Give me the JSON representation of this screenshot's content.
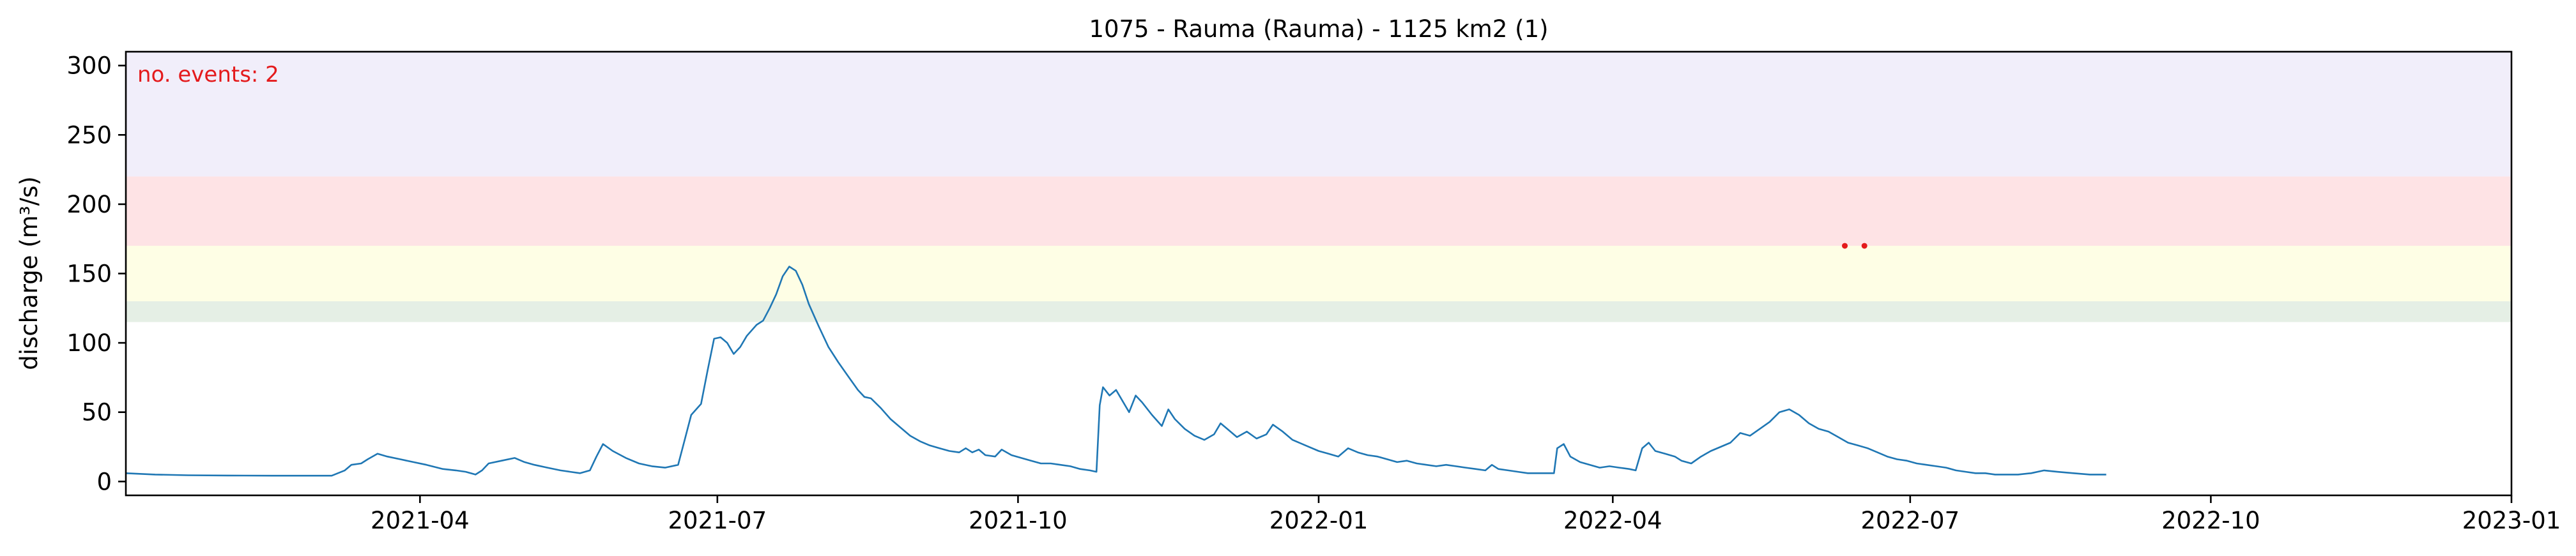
{
  "chart_data": {
    "type": "line",
    "title": "1075 - Rauma (Rauma) - 1125 km2 (1)",
    "xlabel": "",
    "ylabel": "discharge (m³/s)",
    "xlim": [
      "2021-01-01",
      "2023-01-01"
    ],
    "ylim": [
      -10,
      310
    ],
    "x_ticks": [
      "2021-04",
      "2021-07",
      "2021-10",
      "2022-01",
      "2022-04",
      "2022-07",
      "2022-10",
      "2023-01"
    ],
    "y_ticks": [
      0,
      50,
      100,
      150,
      200,
      250,
      300
    ],
    "grid": false,
    "annotation": {
      "text": "no. events: 2",
      "color": "#e41a1c",
      "placement": "top-left"
    },
    "threshold_bands": [
      {
        "from": 115,
        "to": 130,
        "color": "#e5efe5"
      },
      {
        "from": 130,
        "to": 170,
        "color": "#fefee5"
      },
      {
        "from": 170,
        "to": 220,
        "color": "#fee3e5"
      },
      {
        "from": 220,
        "to": 310,
        "color": "#f1eefa"
      }
    ],
    "series": [
      {
        "color": "#1f77b4",
        "points": [
          [
            "2021-01-01",
            6
          ],
          [
            "2021-01-10",
            5
          ],
          [
            "2021-01-20",
            4.5
          ],
          [
            "2021-02-01",
            4.3
          ],
          [
            "2021-02-15",
            4.2
          ],
          [
            "2021-03-05",
            4.2
          ],
          [
            "2021-03-09",
            8
          ],
          [
            "2021-03-11",
            12
          ],
          [
            "2021-03-14",
            13
          ],
          [
            "2021-03-16",
            16
          ],
          [
            "2021-03-19",
            20
          ],
          [
            "2021-03-22",
            18
          ],
          [
            "2021-03-26",
            16
          ],
          [
            "2021-03-30",
            14
          ],
          [
            "2021-04-03",
            12
          ],
          [
            "2021-04-08",
            9
          ],
          [
            "2021-04-12",
            8
          ],
          [
            "2021-04-15",
            7
          ],
          [
            "2021-04-18",
            5
          ],
          [
            "2021-04-20",
            8
          ],
          [
            "2021-04-22",
            13
          ],
          [
            "2021-04-26",
            15
          ],
          [
            "2021-04-30",
            17
          ],
          [
            "2021-05-03",
            14
          ],
          [
            "2021-05-06",
            12
          ],
          [
            "2021-05-10",
            10
          ],
          [
            "2021-05-14",
            8
          ],
          [
            "2021-05-17",
            7
          ],
          [
            "2021-05-20",
            6
          ],
          [
            "2021-05-23",
            8
          ],
          [
            "2021-05-25",
            18
          ],
          [
            "2021-05-27",
            27
          ],
          [
            "2021-05-30",
            22
          ],
          [
            "2021-06-03",
            17
          ],
          [
            "2021-06-07",
            13
          ],
          [
            "2021-06-11",
            11
          ],
          [
            "2021-06-15",
            10
          ],
          [
            "2021-06-19",
            12
          ],
          [
            "2021-06-21",
            30
          ],
          [
            "2021-06-23",
            48
          ],
          [
            "2021-06-26",
            56
          ],
          [
            "2021-06-28",
            80
          ],
          [
            "2021-06-30",
            103
          ],
          [
            "2021-07-02",
            104
          ],
          [
            "2021-07-04",
            100
          ],
          [
            "2021-07-06",
            92
          ],
          [
            "2021-07-08",
            97
          ],
          [
            "2021-07-10",
            105
          ],
          [
            "2021-07-13",
            113
          ],
          [
            "2021-07-15",
            116
          ],
          [
            "2021-07-17",
            125
          ],
          [
            "2021-07-19",
            135
          ],
          [
            "2021-07-21",
            148
          ],
          [
            "2021-07-23",
            155
          ],
          [
            "2021-07-25",
            152
          ],
          [
            "2021-07-27",
            142
          ],
          [
            "2021-07-29",
            128
          ],
          [
            "2021-08-01",
            112
          ],
          [
            "2021-08-04",
            97
          ],
          [
            "2021-08-07",
            86
          ],
          [
            "2021-08-10",
            76
          ],
          [
            "2021-08-13",
            66
          ],
          [
            "2021-08-15",
            61
          ],
          [
            "2021-08-17",
            60
          ],
          [
            "2021-08-20",
            53
          ],
          [
            "2021-08-23",
            45
          ],
          [
            "2021-08-26",
            39
          ],
          [
            "2021-08-29",
            33
          ],
          [
            "2021-09-01",
            29
          ],
          [
            "2021-09-04",
            26
          ],
          [
            "2021-09-07",
            24
          ],
          [
            "2021-09-10",
            22
          ],
          [
            "2021-09-13",
            21
          ],
          [
            "2021-09-15",
            24
          ],
          [
            "2021-09-17",
            21
          ],
          [
            "2021-09-19",
            23
          ],
          [
            "2021-09-21",
            19
          ],
          [
            "2021-09-24",
            18
          ],
          [
            "2021-09-26",
            23
          ],
          [
            "2021-09-29",
            19
          ],
          [
            "2021-10-02",
            17
          ],
          [
            "2021-10-05",
            15
          ],
          [
            "2021-10-08",
            13
          ],
          [
            "2021-10-11",
            13
          ],
          [
            "2021-10-14",
            12
          ],
          [
            "2021-10-17",
            11
          ],
          [
            "2021-10-20",
            9
          ],
          [
            "2021-10-23",
            8
          ],
          [
            "2021-10-25",
            7
          ],
          [
            "2021-10-26",
            55
          ],
          [
            "2021-10-27",
            68
          ],
          [
            "2021-10-29",
            62
          ],
          [
            "2021-10-31",
            66
          ],
          [
            "2021-11-02",
            58
          ],
          [
            "2021-11-04",
            50
          ],
          [
            "2021-11-06",
            62
          ],
          [
            "2021-11-08",
            57
          ],
          [
            "2021-11-11",
            48
          ],
          [
            "2021-11-14",
            40
          ],
          [
            "2021-11-16",
            52
          ],
          [
            "2021-11-18",
            45
          ],
          [
            "2021-11-21",
            38
          ],
          [
            "2021-11-24",
            33
          ],
          [
            "2021-11-27",
            30
          ],
          [
            "2021-11-30",
            34
          ],
          [
            "2021-12-02",
            42
          ],
          [
            "2021-12-04",
            38
          ],
          [
            "2021-12-07",
            32
          ],
          [
            "2021-12-10",
            36
          ],
          [
            "2021-12-13",
            31
          ],
          [
            "2021-12-16",
            34
          ],
          [
            "2021-12-18",
            41
          ],
          [
            "2021-12-21",
            36
          ],
          [
            "2021-12-24",
            30
          ],
          [
            "2021-12-28",
            26
          ],
          [
            "2022-01-01",
            22
          ],
          [
            "2022-01-04",
            20
          ],
          [
            "2022-01-07",
            18
          ],
          [
            "2022-01-10",
            24
          ],
          [
            "2022-01-13",
            21
          ],
          [
            "2022-01-16",
            19
          ],
          [
            "2022-01-19",
            18
          ],
          [
            "2022-01-22",
            16
          ],
          [
            "2022-01-25",
            14
          ],
          [
            "2022-01-28",
            15
          ],
          [
            "2022-01-31",
            13
          ],
          [
            "2022-02-03",
            12
          ],
          [
            "2022-02-06",
            11
          ],
          [
            "2022-02-09",
            12
          ],
          [
            "2022-02-12",
            11
          ],
          [
            "2022-02-15",
            10
          ],
          [
            "2022-02-18",
            9
          ],
          [
            "2022-02-21",
            8
          ],
          [
            "2022-02-23",
            12
          ],
          [
            "2022-02-25",
            9
          ],
          [
            "2022-02-28",
            8
          ],
          [
            "2022-03-03",
            7
          ],
          [
            "2022-03-06",
            6
          ],
          [
            "2022-03-09",
            6
          ],
          [
            "2022-03-12",
            6
          ],
          [
            "2022-03-14",
            6
          ],
          [
            "2022-03-15",
            24
          ],
          [
            "2022-03-17",
            27
          ],
          [
            "2022-03-19",
            18
          ],
          [
            "2022-03-22",
            14
          ],
          [
            "2022-03-25",
            12
          ],
          [
            "2022-03-28",
            10
          ],
          [
            "2022-03-31",
            11
          ],
          [
            "2022-04-03",
            10
          ],
          [
            "2022-04-06",
            9
          ],
          [
            "2022-04-08",
            8
          ],
          [
            "2022-04-10",
            24
          ],
          [
            "2022-04-12",
            28
          ],
          [
            "2022-04-14",
            22
          ],
          [
            "2022-04-17",
            20
          ],
          [
            "2022-04-20",
            18
          ],
          [
            "2022-04-22",
            15
          ],
          [
            "2022-04-25",
            13
          ],
          [
            "2022-04-28",
            18
          ],
          [
            "2022-05-01",
            22
          ],
          [
            "2022-05-04",
            25
          ],
          [
            "2022-05-07",
            28
          ],
          [
            "2022-05-10",
            35
          ],
          [
            "2022-05-13",
            33
          ],
          [
            "2022-05-16",
            38
          ],
          [
            "2022-05-19",
            43
          ],
          [
            "2022-05-22",
            50
          ],
          [
            "2022-05-25",
            52
          ],
          [
            "2022-05-28",
            48
          ],
          [
            "2022-05-31",
            42
          ],
          [
            "2022-06-03",
            38
          ],
          [
            "2022-06-06",
            36
          ],
          [
            "2022-06-09",
            32
          ],
          [
            "2022-06-12",
            28
          ],
          [
            "2022-06-15",
            26
          ],
          [
            "2022-06-18",
            24
          ],
          [
            "2022-06-21",
            21
          ],
          [
            "2022-06-24",
            18
          ],
          [
            "2022-06-27",
            16
          ],
          [
            "2022-06-30",
            15
          ],
          [
            "2022-07-03",
            13
          ],
          [
            "2022-07-06",
            12
          ],
          [
            "2022-07-09",
            11
          ],
          [
            "2022-07-12",
            10
          ],
          [
            "2022-07-15",
            8
          ],
          [
            "2022-07-18",
            7
          ],
          [
            "2022-07-21",
            6
          ],
          [
            "2022-07-24",
            6
          ],
          [
            "2022-07-27",
            5
          ],
          [
            "2022-07-30",
            5
          ],
          [
            "2022-08-03",
            5
          ],
          [
            "2022-08-07",
            6
          ],
          [
            "2022-08-11",
            8
          ],
          [
            "2022-08-15",
            7
          ],
          [
            "2022-08-20",
            6
          ],
          [
            "2022-08-25",
            5
          ],
          [
            "2022-08-30",
            5
          ]
        ]
      }
    ],
    "events": [
      {
        "x": "2022-06-11",
        "y": 170
      },
      {
        "x": "2022-06-17",
        "y": 170
      }
    ]
  }
}
